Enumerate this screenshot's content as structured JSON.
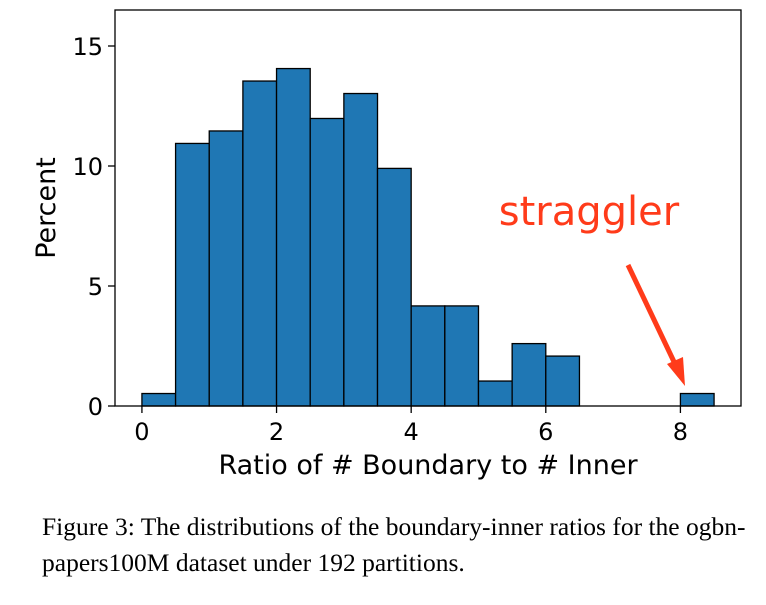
{
  "chart_data": {
    "type": "bar",
    "title": "",
    "xlabel": "Ratio of # Boundary to # Inner",
    "ylabel": "Percent",
    "xlim": [
      -0.4,
      8.9
    ],
    "ylim": [
      0,
      16.5
    ],
    "xticks": [
      0,
      2,
      4,
      6,
      8
    ],
    "yticks": [
      0,
      5,
      10,
      15
    ],
    "bin_width": 0.5,
    "bins": [
      {
        "x0": 0.0,
        "x1": 0.5,
        "value": 0.52
      },
      {
        "x0": 0.5,
        "x1": 1.0,
        "value": 10.94
      },
      {
        "x0": 1.0,
        "x1": 1.5,
        "value": 11.46
      },
      {
        "x0": 1.5,
        "x1": 2.0,
        "value": 13.54
      },
      {
        "x0": 2.0,
        "x1": 2.5,
        "value": 14.06
      },
      {
        "x0": 2.5,
        "x1": 3.0,
        "value": 11.98
      },
      {
        "x0": 3.0,
        "x1": 3.5,
        "value": 13.02
      },
      {
        "x0": 3.5,
        "x1": 4.0,
        "value": 9.9
      },
      {
        "x0": 4.0,
        "x1": 4.5,
        "value": 4.17
      },
      {
        "x0": 4.5,
        "x1": 5.0,
        "value": 4.17
      },
      {
        "x0": 5.0,
        "x1": 5.5,
        "value": 1.04
      },
      {
        "x0": 5.5,
        "x1": 6.0,
        "value": 2.6
      },
      {
        "x0": 6.0,
        "x1": 6.5,
        "value": 2.08
      },
      {
        "x0": 8.0,
        "x1": 8.5,
        "value": 0.52
      }
    ],
    "grid": false,
    "bar_color": "#1f77b4",
    "annotation": {
      "text": "straggler",
      "color": "#ff3b1a",
      "points_to_x": 8.25,
      "points_to_value": 0.52
    }
  },
  "caption": "Figure 3: The distributions of the boundary-inner ratios for the ogbn-papers100M dataset under 192 partitions."
}
